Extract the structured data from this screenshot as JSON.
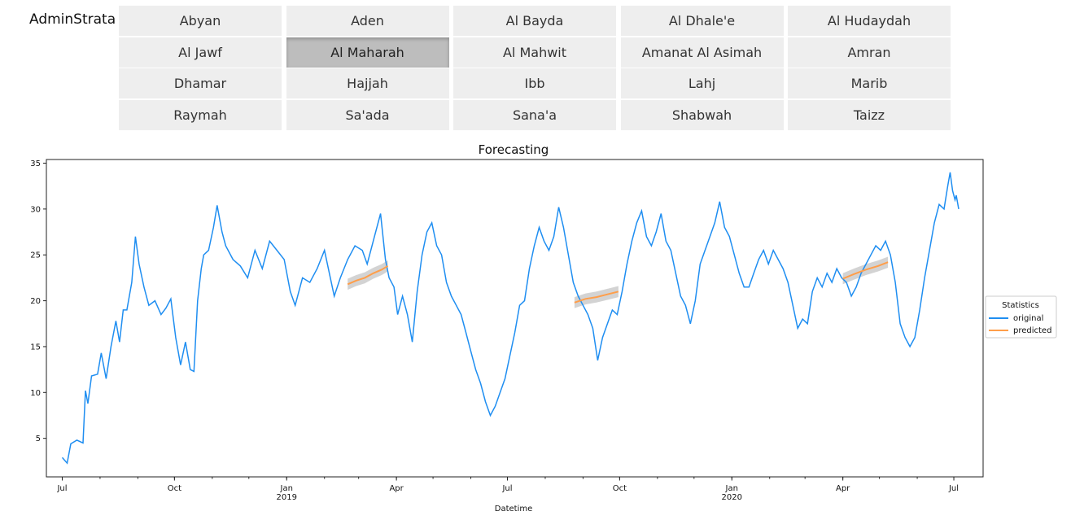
{
  "widget": {
    "label": "AdminStrata",
    "options": [
      "Abyan",
      "Aden",
      "Al Bayda",
      "Al Dhale'e",
      "Al Hudaydah",
      "Al Jawf",
      "Al Maharah",
      "Al Mahwit",
      "Amanat Al Asimah",
      "Amran",
      "Dhamar",
      "Hajjah",
      "Ibb",
      "Lahj",
      "Marib",
      "Raymah",
      "Sa'ada",
      "Sana'a",
      "Shabwah",
      "Taizz"
    ],
    "selected": "Al Maharah"
  },
  "chart_data": {
    "type": "line",
    "title": "Forecasting",
    "xlabel": "Datetime",
    "ylabel": "",
    "x_range": [
      "2018-06-18",
      "2020-07-25"
    ],
    "ylim": [
      0.8,
      35.4
    ],
    "y_ticks": [
      5,
      10,
      15,
      20,
      25,
      30,
      35
    ],
    "x_ticks": [
      {
        "date": "2018-07-01",
        "label": "Jul",
        "sub": ""
      },
      {
        "date": "2018-10-01",
        "label": "Oct",
        "sub": ""
      },
      {
        "date": "2019-01-01",
        "label": "Jan",
        "sub": "2019"
      },
      {
        "date": "2019-04-01",
        "label": "Apr",
        "sub": ""
      },
      {
        "date": "2019-07-01",
        "label": "Jul",
        "sub": ""
      },
      {
        "date": "2019-10-01",
        "label": "Oct",
        "sub": ""
      },
      {
        "date": "2020-01-01",
        "label": "Jan",
        "sub": "2020"
      },
      {
        "date": "2020-04-01",
        "label": "Apr",
        "sub": ""
      },
      {
        "date": "2020-07-01",
        "label": "Jul",
        "sub": ""
      }
    ],
    "grid": false,
    "legend": {
      "title": "Statistics",
      "placement": "center-right outside"
    },
    "series": [
      {
        "name": "original",
        "color": "#1f8ef1",
        "points": [
          [
            "2018-07-01",
            2.9
          ],
          [
            "2018-07-05",
            2.3
          ],
          [
            "2018-07-08",
            4.4
          ],
          [
            "2018-07-13",
            4.8
          ],
          [
            "2018-07-18",
            4.5
          ],
          [
            "2018-07-20",
            10.2
          ],
          [
            "2018-07-22",
            8.8
          ],
          [
            "2018-07-25",
            11.8
          ],
          [
            "2018-07-30",
            12.0
          ],
          [
            "2018-08-02",
            14.3
          ],
          [
            "2018-08-06",
            11.5
          ],
          [
            "2018-08-10",
            15.0
          ],
          [
            "2018-08-14",
            17.8
          ],
          [
            "2018-08-17",
            15.5
          ],
          [
            "2018-08-20",
            19.0
          ],
          [
            "2018-08-23",
            19.0
          ],
          [
            "2018-08-27",
            22.0
          ],
          [
            "2018-08-30",
            27.0
          ],
          [
            "2018-09-02",
            24.0
          ],
          [
            "2018-09-06",
            21.5
          ],
          [
            "2018-09-10",
            19.5
          ],
          [
            "2018-09-15",
            20.0
          ],
          [
            "2018-09-20",
            18.5
          ],
          [
            "2018-09-24",
            19.2
          ],
          [
            "2018-09-28",
            20.2
          ],
          [
            "2018-10-02",
            16.0
          ],
          [
            "2018-10-06",
            13.0
          ],
          [
            "2018-10-10",
            15.5
          ],
          [
            "2018-10-14",
            12.5
          ],
          [
            "2018-10-17",
            12.3
          ],
          [
            "2018-10-20",
            20.0
          ],
          [
            "2018-10-23",
            23.5
          ],
          [
            "2018-10-25",
            25.0
          ],
          [
            "2018-10-29",
            25.5
          ],
          [
            "2018-11-02",
            28.0
          ],
          [
            "2018-11-05",
            30.4
          ],
          [
            "2018-11-09",
            27.5
          ],
          [
            "2018-11-12",
            26.0
          ],
          [
            "2018-11-18",
            24.5
          ],
          [
            "2018-11-24",
            23.8
          ],
          [
            "2018-11-30",
            22.5
          ],
          [
            "2018-12-06",
            25.5
          ],
          [
            "2018-12-12",
            23.5
          ],
          [
            "2018-12-18",
            26.5
          ],
          [
            "2018-12-24",
            25.5
          ],
          [
            "2018-12-30",
            24.5
          ],
          [
            "2019-01-04",
            21.0
          ],
          [
            "2019-01-08",
            19.5
          ],
          [
            "2019-01-14",
            22.5
          ],
          [
            "2019-01-20",
            22.0
          ],
          [
            "2019-01-26",
            23.5
          ],
          [
            "2019-02-01",
            25.5
          ],
          [
            "2019-02-05",
            23.0
          ],
          [
            "2019-02-09",
            20.5
          ],
          [
            "2019-02-14",
            22.5
          ],
          [
            "2019-02-20",
            24.5
          ],
          [
            "2019-02-26",
            26.0
          ],
          [
            "2019-03-04",
            25.5
          ],
          [
            "2019-03-08",
            24.0
          ],
          [
            "2019-03-14",
            27.0
          ],
          [
            "2019-03-19",
            29.5
          ],
          [
            "2019-03-23",
            24.5
          ],
          [
            "2019-03-26",
            22.5
          ],
          [
            "2019-03-30",
            21.5
          ],
          [
            "2019-04-02",
            18.5
          ],
          [
            "2019-04-06",
            20.5
          ],
          [
            "2019-04-10",
            18.5
          ],
          [
            "2019-04-14",
            15.5
          ],
          [
            "2019-04-18",
            21.0
          ],
          [
            "2019-04-22",
            25.0
          ],
          [
            "2019-04-26",
            27.5
          ],
          [
            "2019-04-30",
            28.5
          ],
          [
            "2019-05-04",
            26.0
          ],
          [
            "2019-05-08",
            25.0
          ],
          [
            "2019-05-12",
            22.0
          ],
          [
            "2019-05-16",
            20.5
          ],
          [
            "2019-05-20",
            19.5
          ],
          [
            "2019-05-24",
            18.5
          ],
          [
            "2019-05-28",
            16.5
          ],
          [
            "2019-06-01",
            14.5
          ],
          [
            "2019-06-05",
            12.5
          ],
          [
            "2019-06-09",
            11.0
          ],
          [
            "2019-06-13",
            9.0
          ],
          [
            "2019-06-17",
            7.5
          ],
          [
            "2019-06-21",
            8.5
          ],
          [
            "2019-06-25",
            10.0
          ],
          [
            "2019-06-29",
            11.5
          ],
          [
            "2019-07-03",
            14.0
          ],
          [
            "2019-07-07",
            16.5
          ],
          [
            "2019-07-11",
            19.5
          ],
          [
            "2019-07-15",
            20.0
          ],
          [
            "2019-07-19",
            23.5
          ],
          [
            "2019-07-23",
            26.0
          ],
          [
            "2019-07-27",
            28.0
          ],
          [
            "2019-07-31",
            26.5
          ],
          [
            "2019-08-04",
            25.5
          ],
          [
            "2019-08-08",
            27.0
          ],
          [
            "2019-08-12",
            30.2
          ],
          [
            "2019-08-16",
            28.0
          ],
          [
            "2019-08-20",
            25.0
          ],
          [
            "2019-08-24",
            22.0
          ],
          [
            "2019-08-28",
            20.5
          ],
          [
            "2019-09-01",
            19.5
          ],
          [
            "2019-09-05",
            18.5
          ],
          [
            "2019-09-09",
            17.0
          ],
          [
            "2019-09-13",
            13.5
          ],
          [
            "2019-09-17",
            16.0
          ],
          [
            "2019-09-21",
            17.5
          ],
          [
            "2019-09-25",
            19.0
          ],
          [
            "2019-09-29",
            18.5
          ],
          [
            "2019-10-03",
            21.0
          ],
          [
            "2019-10-07",
            24.0
          ],
          [
            "2019-10-11",
            26.5
          ],
          [
            "2019-10-15",
            28.5
          ],
          [
            "2019-10-19",
            29.8
          ],
          [
            "2019-10-23",
            27.0
          ],
          [
            "2019-10-27",
            26.0
          ],
          [
            "2019-10-31",
            27.5
          ],
          [
            "2019-11-04",
            29.5
          ],
          [
            "2019-11-08",
            26.5
          ],
          [
            "2019-11-12",
            25.5
          ],
          [
            "2019-11-16",
            23.0
          ],
          [
            "2019-11-20",
            20.5
          ],
          [
            "2019-11-24",
            19.5
          ],
          [
            "2019-11-28",
            17.5
          ],
          [
            "2019-12-02",
            20.0
          ],
          [
            "2019-12-06",
            24.0
          ],
          [
            "2019-12-10",
            25.5
          ],
          [
            "2019-12-14",
            27.0
          ],
          [
            "2019-12-18",
            28.5
          ],
          [
            "2019-12-22",
            30.8
          ],
          [
            "2019-12-26",
            28.0
          ],
          [
            "2019-12-30",
            27.0
          ],
          [
            "2020-01-03",
            25.0
          ],
          [
            "2020-01-07",
            23.0
          ],
          [
            "2020-01-11",
            21.5
          ],
          [
            "2020-01-15",
            21.5
          ],
          [
            "2020-01-19",
            23.0
          ],
          [
            "2020-01-23",
            24.5
          ],
          [
            "2020-01-27",
            25.5
          ],
          [
            "2020-01-31",
            24.0
          ],
          [
            "2020-02-04",
            25.5
          ],
          [
            "2020-02-08",
            24.5
          ],
          [
            "2020-02-12",
            23.5
          ],
          [
            "2020-02-16",
            22.0
          ],
          [
            "2020-02-20",
            19.5
          ],
          [
            "2020-02-24",
            17.0
          ],
          [
            "2020-02-28",
            18.0
          ],
          [
            "2020-03-03",
            17.5
          ],
          [
            "2020-03-07",
            21.0
          ],
          [
            "2020-03-11",
            22.5
          ],
          [
            "2020-03-15",
            21.5
          ],
          [
            "2020-03-19",
            23.0
          ],
          [
            "2020-03-23",
            22.0
          ],
          [
            "2020-03-27",
            23.5
          ],
          [
            "2020-03-31",
            22.5
          ],
          [
            "2020-04-04",
            22.0
          ],
          [
            "2020-04-08",
            20.5
          ],
          [
            "2020-04-12",
            21.5
          ],
          [
            "2020-04-16",
            23.0
          ],
          [
            "2020-04-20",
            24.0
          ],
          [
            "2020-04-24",
            25.0
          ],
          [
            "2020-04-28",
            26.0
          ],
          [
            "2020-05-02",
            25.5
          ],
          [
            "2020-05-06",
            26.5
          ],
          [
            "2020-05-10",
            25.0
          ],
          [
            "2020-05-14",
            22.0
          ],
          [
            "2020-05-18",
            17.5
          ],
          [
            "2020-05-22",
            16.0
          ],
          [
            "2020-05-26",
            15.0
          ],
          [
            "2020-05-30",
            16.0
          ],
          [
            "2020-06-03",
            19.0
          ],
          [
            "2020-06-07",
            22.5
          ],
          [
            "2020-06-11",
            25.5
          ],
          [
            "2020-06-15",
            28.5
          ],
          [
            "2020-06-19",
            30.5
          ],
          [
            "2020-06-23",
            30.0
          ],
          [
            "2020-06-26",
            32.5
          ],
          [
            "2020-06-28",
            34.0
          ],
          [
            "2020-06-30",
            32.0
          ],
          [
            "2020-07-02",
            31.0
          ],
          [
            "2020-07-03",
            31.5
          ],
          [
            "2020-07-05",
            30.0
          ]
        ]
      },
      {
        "name": "predicted",
        "color": "#ff9e4a",
        "segments": [
          [
            [
              "2019-02-20",
              21.8
            ],
            [
              "2019-02-27",
              22.2
            ],
            [
              "2019-03-06",
              22.5
            ],
            [
              "2019-03-13",
              23.0
            ],
            [
              "2019-03-20",
              23.4
            ],
            [
              "2019-03-25",
              23.8
            ]
          ],
          [
            [
              "2019-08-25",
              19.8
            ],
            [
              "2019-09-03",
              20.2
            ],
            [
              "2019-09-12",
              20.4
            ],
            [
              "2019-09-21",
              20.7
            ],
            [
              "2019-09-30",
              21.0
            ]
          ],
          [
            [
              "2020-04-01",
              22.4
            ],
            [
              "2020-04-10",
              22.9
            ],
            [
              "2020-04-20",
              23.4
            ],
            [
              "2020-04-30",
              23.8
            ],
            [
              "2020-05-08",
              24.2
            ]
          ]
        ],
        "band_halfwidth": 0.6
      }
    ]
  }
}
